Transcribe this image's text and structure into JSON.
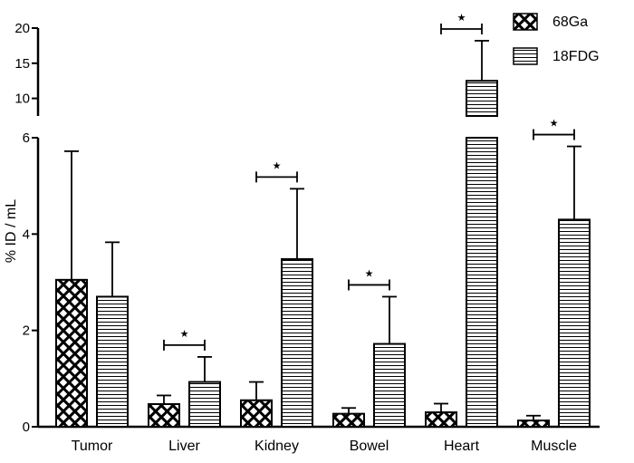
{
  "chart_data": {
    "type": "bar",
    "ylabel": "% ID / mL",
    "categories": [
      "Tumor",
      "Liver",
      "Kidney",
      "Bowel",
      "Heart",
      "Muscle"
    ],
    "series": [
      {
        "name": "68Ga",
        "pattern": "crosshatch",
        "values": [
          3.05,
          0.47,
          0.55,
          0.27,
          0.3,
          0.13
        ],
        "errors": [
          2.67,
          0.18,
          0.38,
          0.12,
          0.18,
          0.1
        ]
      },
      {
        "name": "18FDG",
        "pattern": "horizontal-lines",
        "values": [
          2.7,
          0.93,
          3.48,
          1.72,
          12.5,
          4.3
        ],
        "errors": [
          1.13,
          0.52,
          1.46,
          0.98,
          5.7,
          1.52
        ]
      }
    ],
    "y_axis_lower": {
      "range": [
        0,
        6
      ],
      "ticks": [
        "0",
        "2",
        "4",
        "6"
      ]
    },
    "y_axis_upper": {
      "range": [
        7.5,
        20
      ],
      "ticks": [
        "10",
        "15",
        "20"
      ]
    },
    "significance": {
      "marker": "★",
      "categories": [
        "Liver",
        "Kidney",
        "Bowel",
        "Heart",
        "Muscle"
      ]
    },
    "legend": {
      "position": "top-right"
    }
  }
}
